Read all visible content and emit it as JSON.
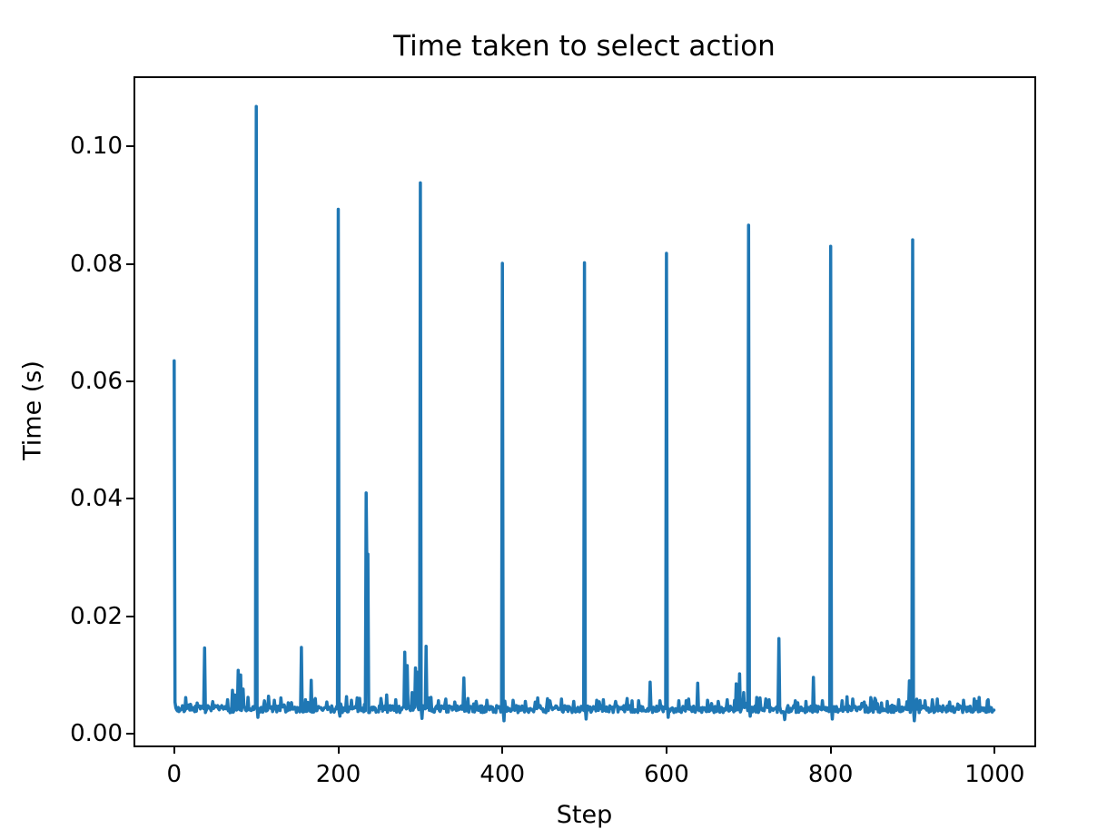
{
  "chart_data": {
    "type": "line",
    "title": "Time taken to select action",
    "xlabel": "Step",
    "ylabel": "Time (s)",
    "line_color": "#1f77b4",
    "background_color": "#ffffff",
    "grid": false,
    "legend": null,
    "x_range": [
      0,
      999
    ],
    "xlim": [
      -48.5,
      1048.3
    ],
    "ylim": [
      -0.002,
      0.1118
    ],
    "x_ticks": [
      {
        "value": 0,
        "label": "0"
      },
      {
        "value": 200,
        "label": "200"
      },
      {
        "value": 400,
        "label": "400"
      },
      {
        "value": 600,
        "label": "600"
      },
      {
        "value": 800,
        "label": "800"
      },
      {
        "value": 1000,
        "label": "1000"
      }
    ],
    "y_ticks": [
      {
        "value": 0.0,
        "label": "0.00"
      },
      {
        "value": 0.02,
        "label": "0.02"
      },
      {
        "value": 0.04,
        "label": "0.04"
      },
      {
        "value": 0.06,
        "label": "0.06"
      },
      {
        "value": 0.08,
        "label": "0.08"
      },
      {
        "value": 0.1,
        "label": "0.10"
      }
    ],
    "baseline": {
      "mean": 0.0042,
      "noise_amplitude": 0.0006
    },
    "spikes": [
      [
        0,
        0.0635
      ],
      [
        37,
        0.0146
      ],
      [
        65,
        0.0058
      ],
      [
        71,
        0.0074
      ],
      [
        74,
        0.0066
      ],
      [
        78,
        0.0108
      ],
      [
        81,
        0.01
      ],
      [
        84,
        0.0076
      ],
      [
        90,
        0.0062
      ],
      [
        100,
        0.1068
      ],
      [
        102,
        0.0028
      ],
      [
        110,
        0.0056
      ],
      [
        115,
        0.0064
      ],
      [
        122,
        0.0057
      ],
      [
        130,
        0.0061
      ],
      [
        143,
        0.0053
      ],
      [
        155,
        0.0147
      ],
      [
        160,
        0.0058
      ],
      [
        167,
        0.0091
      ],
      [
        172,
        0.006
      ],
      [
        186,
        0.0054
      ],
      [
        200,
        0.0893
      ],
      [
        202,
        0.003
      ],
      [
        210,
        0.0063
      ],
      [
        216,
        0.0057
      ],
      [
        223,
        0.0061
      ],
      [
        234,
        0.041
      ],
      [
        235,
        0.025
      ],
      [
        236,
        0.0306
      ],
      [
        252,
        0.006
      ],
      [
        259,
        0.0066
      ],
      [
        270,
        0.0058
      ],
      [
        281,
        0.0139
      ],
      [
        284,
        0.0116
      ],
      [
        290,
        0.007
      ],
      [
        294,
        0.0112
      ],
      [
        296,
        0.0105
      ],
      [
        300,
        0.0938
      ],
      [
        302,
        0.0026
      ],
      [
        307,
        0.0149
      ],
      [
        313,
        0.0062
      ],
      [
        322,
        0.0056
      ],
      [
        331,
        0.0059
      ],
      [
        342,
        0.0054
      ],
      [
        353,
        0.0095
      ],
      [
        358,
        0.006
      ],
      [
        368,
        0.0055
      ],
      [
        381,
        0.0057
      ],
      [
        400,
        0.0801
      ],
      [
        402,
        0.0022
      ],
      [
        413,
        0.0057
      ],
      [
        428,
        0.0055
      ],
      [
        443,
        0.0061
      ],
      [
        458,
        0.0056
      ],
      [
        472,
        0.0059
      ],
      [
        487,
        0.0055
      ],
      [
        500,
        0.0802
      ],
      [
        502,
        0.0025
      ],
      [
        515,
        0.0057
      ],
      [
        523,
        0.0058
      ],
      [
        538,
        0.0055
      ],
      [
        552,
        0.006
      ],
      [
        566,
        0.0056
      ],
      [
        580,
        0.0088
      ],
      [
        592,
        0.0056
      ],
      [
        600,
        0.0818
      ],
      [
        602,
        0.0028
      ],
      [
        615,
        0.0056
      ],
      [
        627,
        0.0059
      ],
      [
        638,
        0.0086
      ],
      [
        650,
        0.0057
      ],
      [
        663,
        0.0055
      ],
      [
        674,
        0.0058
      ],
      [
        685,
        0.0085
      ],
      [
        689,
        0.0102
      ],
      [
        694,
        0.007
      ],
      [
        700,
        0.0866
      ],
      [
        702,
        0.003
      ],
      [
        714,
        0.0061
      ],
      [
        725,
        0.0058
      ],
      [
        737,
        0.0162
      ],
      [
        744,
        0.0024
      ],
      [
        757,
        0.0056
      ],
      [
        770,
        0.0055
      ],
      [
        779,
        0.0096
      ],
      [
        790,
        0.0056
      ],
      [
        800,
        0.083
      ],
      [
        802,
        0.0025
      ],
      [
        814,
        0.0056
      ],
      [
        827,
        0.0059
      ],
      [
        841,
        0.0054
      ],
      [
        855,
        0.0057
      ],
      [
        869,
        0.0055
      ],
      [
        883,
        0.0058
      ],
      [
        896,
        0.009
      ],
      [
        900,
        0.0841
      ],
      [
        902,
        0.0022
      ],
      [
        915,
        0.0056
      ],
      [
        930,
        0.0059
      ],
      [
        945,
        0.0054
      ],
      [
        962,
        0.0057
      ],
      [
        978,
        0.0055
      ],
      [
        992,
        0.0058
      ]
    ]
  }
}
